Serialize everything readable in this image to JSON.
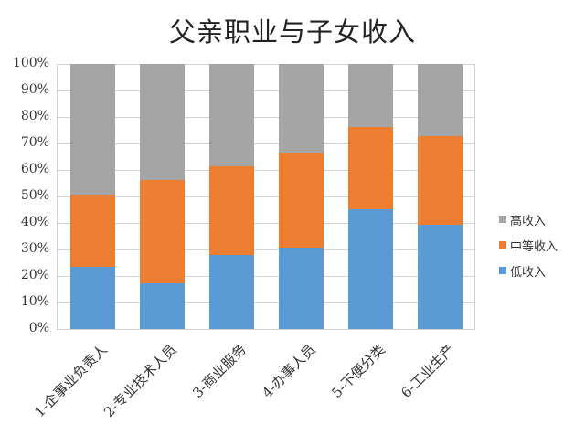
{
  "chart_data": {
    "type": "bar",
    "stacked": true,
    "percent": true,
    "title": "父亲职业与子女收入",
    "xlabel": "",
    "ylabel": "",
    "ylim": [
      0,
      100
    ],
    "yticks": [
      "0%",
      "10%",
      "20%",
      "30%",
      "40%",
      "50%",
      "60%",
      "70%",
      "80%",
      "90%",
      "100%"
    ],
    "grid": true,
    "legend_position": "right",
    "categories": [
      "1-企事业负责人",
      "2-专业技术人员",
      "3-商业服务",
      "4-办事人员",
      "5-不便分类",
      "6-工业生产"
    ],
    "series": [
      {
        "name": "低收入",
        "color": "#5b9bd5",
        "values": [
          23.5,
          17.2,
          27.9,
          30.7,
          45.2,
          39.3
        ]
      },
      {
        "name": "中等收入",
        "color": "#ed7d31",
        "values": [
          27.2,
          39.0,
          33.5,
          35.9,
          31.0,
          33.5
        ]
      },
      {
        "name": "高收入",
        "color": "#a5a5a5",
        "values": [
          49.3,
          43.8,
          38.6,
          33.4,
          23.8,
          27.2
        ]
      }
    ],
    "legend_order": [
      "高收入",
      "中等收入",
      "低收入"
    ]
  }
}
